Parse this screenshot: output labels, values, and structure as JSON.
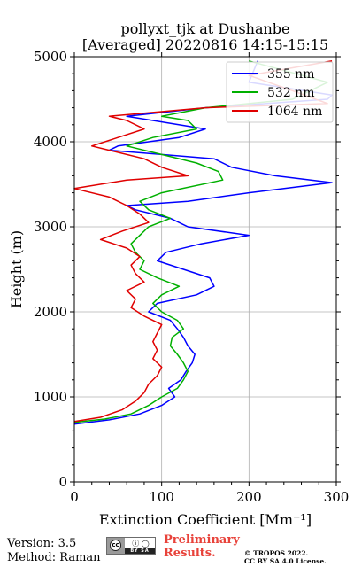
{
  "chart_data": {
    "type": "line",
    "title": "pollyxt_tjk at Dushanbe",
    "subtitle": "[Averaged] 20220816 14:15-15:15",
    "xlabel": "Extinction Coefficient [Mm⁻¹]",
    "ylabel": "Height (m)",
    "xlim": [
      0,
      300
    ],
    "ylim": [
      0,
      5000
    ],
    "xticks": [
      0,
      100,
      200,
      300
    ],
    "yticks": [
      0,
      1000,
      2000,
      3000,
      4000,
      5000
    ],
    "grid": true,
    "legend_position": "top-right",
    "series": [
      {
        "name": "355 nm",
        "color": "#0000ff",
        "points": [
          [
            0,
            680
          ],
          [
            40,
            730
          ],
          [
            75,
            800
          ],
          [
            100,
            900
          ],
          [
            115,
            1000
          ],
          [
            108,
            1100
          ],
          [
            122,
            1200
          ],
          [
            128,
            1300
          ],
          [
            135,
            1400
          ],
          [
            138,
            1500
          ],
          [
            130,
            1600
          ],
          [
            125,
            1700
          ],
          [
            118,
            1800
          ],
          [
            110,
            1900
          ],
          [
            85,
            2000
          ],
          [
            95,
            2100
          ],
          [
            140,
            2200
          ],
          [
            160,
            2300
          ],
          [
            155,
            2400
          ],
          [
            125,
            2500
          ],
          [
            95,
            2600
          ],
          [
            105,
            2700
          ],
          [
            145,
            2800
          ],
          [
            200,
            2900
          ],
          [
            130,
            3000
          ],
          [
            110,
            3100
          ],
          [
            70,
            3200
          ],
          [
            60,
            3250
          ],
          [
            130,
            3300
          ],
          [
            200,
            3400
          ],
          [
            295,
            3520
          ],
          [
            230,
            3600
          ],
          [
            180,
            3700
          ],
          [
            160,
            3800
          ],
          [
            100,
            3850
          ],
          [
            40,
            3900
          ],
          [
            50,
            3950
          ],
          [
            120,
            4050
          ],
          [
            150,
            4150
          ],
          [
            90,
            4250
          ],
          [
            60,
            4300
          ],
          [
            150,
            4400
          ],
          [
            290,
            4500
          ],
          [
            295,
            4550
          ],
          [
            200,
            4700
          ],
          [
            210,
            4950
          ]
        ]
      },
      {
        "name": "532 nm",
        "color": "#00b000",
        "points": [
          [
            0,
            700
          ],
          [
            35,
            740
          ],
          [
            65,
            800
          ],
          [
            85,
            900
          ],
          [
            100,
            1000
          ],
          [
            118,
            1100
          ],
          [
            125,
            1200
          ],
          [
            130,
            1300
          ],
          [
            125,
            1400
          ],
          [
            118,
            1500
          ],
          [
            110,
            1600
          ],
          [
            112,
            1700
          ],
          [
            125,
            1800
          ],
          [
            118,
            1900
          ],
          [
            100,
            2000
          ],
          [
            90,
            2100
          ],
          [
            100,
            2200
          ],
          [
            120,
            2300
          ],
          [
            95,
            2400
          ],
          [
            75,
            2500
          ],
          [
            80,
            2600
          ],
          [
            70,
            2700
          ],
          [
            65,
            2800
          ],
          [
            75,
            2900
          ],
          [
            85,
            3000
          ],
          [
            110,
            3100
          ],
          [
            85,
            3200
          ],
          [
            75,
            3300
          ],
          [
            100,
            3400
          ],
          [
            170,
            3550
          ],
          [
            165,
            3650
          ],
          [
            140,
            3750
          ],
          [
            100,
            3850
          ],
          [
            60,
            3950
          ],
          [
            90,
            4050
          ],
          [
            140,
            4150
          ],
          [
            130,
            4250
          ],
          [
            100,
            4300
          ],
          [
            150,
            4400
          ],
          [
            250,
            4500
          ],
          [
            290,
            4700
          ],
          [
            200,
            4950
          ]
        ]
      },
      {
        "name": "1064 nm",
        "color": "#e00000",
        "points": [
          [
            0,
            710
          ],
          [
            30,
            760
          ],
          [
            55,
            850
          ],
          [
            70,
            950
          ],
          [
            80,
            1050
          ],
          [
            85,
            1150
          ],
          [
            95,
            1250
          ],
          [
            100,
            1350
          ],
          [
            90,
            1450
          ],
          [
            95,
            1550
          ],
          [
            90,
            1650
          ],
          [
            95,
            1750
          ],
          [
            100,
            1850
          ],
          [
            80,
            1950
          ],
          [
            65,
            2050
          ],
          [
            70,
            2150
          ],
          [
            60,
            2250
          ],
          [
            80,
            2350
          ],
          [
            70,
            2450
          ],
          [
            65,
            2550
          ],
          [
            75,
            2650
          ],
          [
            60,
            2750
          ],
          [
            30,
            2850
          ],
          [
            55,
            2950
          ],
          [
            85,
            3050
          ],
          [
            75,
            3150
          ],
          [
            60,
            3250
          ],
          [
            40,
            3350
          ],
          [
            0,
            3450
          ],
          [
            60,
            3550
          ],
          [
            130,
            3600
          ],
          [
            100,
            3700
          ],
          [
            80,
            3800
          ],
          [
            40,
            3900
          ],
          [
            20,
            3950
          ],
          [
            50,
            4050
          ],
          [
            80,
            4150
          ],
          [
            60,
            4250
          ],
          [
            40,
            4300
          ],
          [
            150,
            4400
          ],
          [
            290,
            4450
          ],
          [
            250,
            4600
          ],
          [
            200,
            4780
          ],
          [
            295,
            4950
          ]
        ]
      }
    ]
  },
  "footer": {
    "version": "Version: 3.5",
    "method": "Method: Raman",
    "cc_badge": "BY  SA",
    "preliminary": "Preliminary Results.",
    "copyright_line1": "© TROPOS 2022.",
    "copyright_line2": "CC BY SA 4.0 License."
  }
}
